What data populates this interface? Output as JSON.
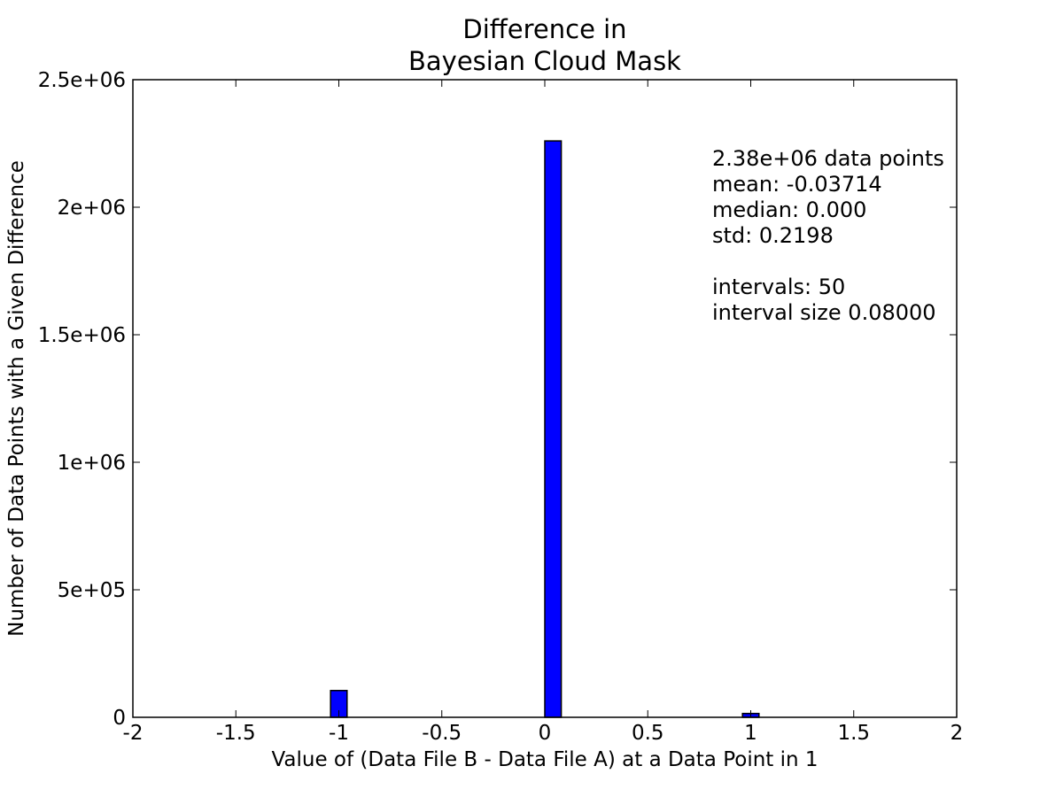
{
  "chart_data": {
    "type": "bar",
    "title_lines": [
      "Difference in",
      "Bayesian Cloud Mask"
    ],
    "xlabel": "Value of (Data File B - Data File A) at a Data Point in 1",
    "ylabel": "Number of Data Points with a Given Difference",
    "xlim": [
      -2,
      2
    ],
    "ylim": [
      0,
      2500000
    ],
    "xticks": [
      -2,
      -1.5,
      -1,
      -0.5,
      0,
      0.5,
      1,
      1.5,
      2
    ],
    "xtick_labels": [
      "-2",
      "-1.5",
      "-1",
      "-0.5",
      "0",
      "0.5",
      "1",
      "1.5",
      "2"
    ],
    "yticks": [
      0,
      500000,
      1000000,
      1500000,
      2000000,
      2500000
    ],
    "ytick_labels": [
      "0",
      "5e+05",
      "1e+06",
      "1.5e+06",
      "2e+06",
      "2.5e+06"
    ],
    "bars": [
      {
        "x0": -1.04,
        "x1": -0.96,
        "value": 105000
      },
      {
        "x0": 0.0,
        "x1": 0.08,
        "value": 2260000
      },
      {
        "x0": 0.96,
        "x1": 1.04,
        "value": 15000
      }
    ],
    "bar_color": "#0000ff",
    "stats_lines": [
      "2.38e+06 data points",
      "mean: -0.03714",
      "median: 0.000",
      "std: 0.2198",
      "",
      "intervals: 50",
      "interval size 0.08000"
    ],
    "grid": false
  }
}
